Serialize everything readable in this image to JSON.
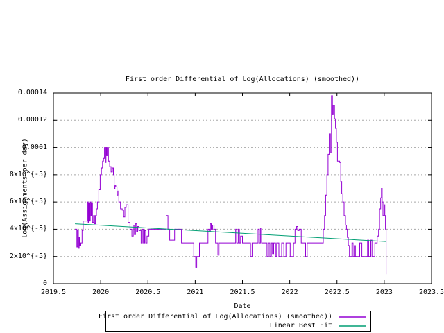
{
  "window": {
    "background": "#ffffff",
    "text_color": "#000000"
  },
  "chart_data": {
    "type": "line",
    "title": "First order Differential of Log(Allocations) (smoothed))",
    "xlabel": "Date",
    "ylabel": "log(Assignments per day)",
    "xlim": [
      2019.5,
      2023.5
    ],
    "ylim": [
      0,
      0.00014
    ],
    "grid": {
      "horizontal": true,
      "vertical": false,
      "style": "dotted",
      "color": "#a8a8a8"
    },
    "frame_color": "#000000",
    "legend_position": "below-plot-centered, boxed, labels right-aligned before line samples",
    "xticks": {
      "values": [
        2019.5,
        2020,
        2020.5,
        2021,
        2021.5,
        2022,
        2022.5,
        2023,
        2023.5
      ],
      "labels": [
        "2019.5",
        "2020",
        "2020.5",
        "2021",
        "2021.5",
        "2022",
        "2022.5",
        "2023",
        "2023.5"
      ]
    },
    "yticks": {
      "values_e5": [
        0,
        2,
        4,
        6,
        8,
        10,
        12,
        14
      ],
      "labels": [
        "0",
        "2x10^{-5}",
        "4x10^{-5}",
        "6x10^{-5}",
        "8x10^{-5}",
        "0.0001",
        "0.00012",
        "0.00014"
      ]
    },
    "series": [
      {
        "name": "First order Differential of Log(Allocations) (smoothed))",
        "color": "#9400d3",
        "style": "steps",
        "y_scale": 1e-05,
        "points": [
          [
            2019.728,
            4.0
          ],
          [
            2019.748,
            2.7
          ],
          [
            2019.756,
            3.9
          ],
          [
            2019.764,
            2.6
          ],
          [
            2019.772,
            3.4
          ],
          [
            2019.78,
            2.8
          ],
          [
            2019.79,
            3.0
          ],
          [
            2019.803,
            3.9
          ],
          [
            2019.815,
            4.6
          ],
          [
            2019.86,
            6.0
          ],
          [
            2019.868,
            4.5
          ],
          [
            2019.875,
            5.9
          ],
          [
            2019.883,
            4.6
          ],
          [
            2019.89,
            6.0
          ],
          [
            2019.898,
            5.0
          ],
          [
            2019.905,
            5.9
          ],
          [
            2019.913,
            4.5
          ],
          [
            2019.925,
            5.0
          ],
          [
            2019.935,
            4.4
          ],
          [
            2019.945,
            5.0
          ],
          [
            2019.955,
            5.5
          ],
          [
            2019.965,
            6.0
          ],
          [
            2019.98,
            6.9
          ],
          [
            2019.995,
            8.0
          ],
          [
            2020.008,
            8.5
          ],
          [
            2020.02,
            9.0
          ],
          [
            2020.03,
            9.2
          ],
          [
            2020.04,
            10.0
          ],
          [
            2020.048,
            8.9
          ],
          [
            2020.056,
            10.0
          ],
          [
            2020.064,
            9.4
          ],
          [
            2020.072,
            10.0
          ],
          [
            2020.082,
            9.0
          ],
          [
            2020.095,
            8.6
          ],
          [
            2020.11,
            8.2
          ],
          [
            2020.124,
            8.5
          ],
          [
            2020.135,
            8.0
          ],
          [
            2020.143,
            7.0
          ],
          [
            2020.151,
            7.2
          ],
          [
            2020.16,
            7.1
          ],
          [
            2020.172,
            6.5
          ],
          [
            2020.182,
            6.8
          ],
          [
            2020.192,
            6.0
          ],
          [
            2020.21,
            5.5
          ],
          [
            2020.228,
            5.4
          ],
          [
            2020.243,
            4.9
          ],
          [
            2020.256,
            5.6
          ],
          [
            2020.27,
            5.8
          ],
          [
            2020.29,
            4.5
          ],
          [
            2020.31,
            4.0
          ],
          [
            2020.33,
            3.5
          ],
          [
            2020.345,
            4.3
          ],
          [
            2020.357,
            3.6
          ],
          [
            2020.368,
            4.4
          ],
          [
            2020.38,
            3.8
          ],
          [
            2020.392,
            4.2
          ],
          [
            2020.405,
            3.9
          ],
          [
            2020.428,
            3.0
          ],
          [
            2020.44,
            4.0
          ],
          [
            2020.452,
            3.0
          ],
          [
            2020.465,
            3.9
          ],
          [
            2020.476,
            3.0
          ],
          [
            2020.49,
            3.5
          ],
          [
            2020.51,
            4.0
          ],
          [
            2020.693,
            5.0
          ],
          [
            2020.712,
            4.0
          ],
          [
            2020.73,
            3.2
          ],
          [
            2020.782,
            4.0
          ],
          [
            2020.855,
            3.0
          ],
          [
            2020.985,
            2.0
          ],
          [
            2021.005,
            1.2
          ],
          [
            2021.016,
            2.0
          ],
          [
            2021.045,
            3.0
          ],
          [
            2021.135,
            4.0
          ],
          [
            2021.15,
            3.8
          ],
          [
            2021.16,
            4.4
          ],
          [
            2021.17,
            4.0
          ],
          [
            2021.185,
            4.3
          ],
          [
            2021.2,
            4.0
          ],
          [
            2021.215,
            3.0
          ],
          [
            2021.24,
            2.1
          ],
          [
            2021.252,
            3.0
          ],
          [
            2021.428,
            4.0
          ],
          [
            2021.44,
            3.0
          ],
          [
            2021.455,
            4.0
          ],
          [
            2021.468,
            3.0
          ],
          [
            2021.48,
            3.5
          ],
          [
            2021.5,
            3.0
          ],
          [
            2021.585,
            2.0
          ],
          [
            2021.602,
            3.0
          ],
          [
            2021.665,
            4.0
          ],
          [
            2021.678,
            3.0
          ],
          [
            2021.69,
            4.1
          ],
          [
            2021.702,
            3.0
          ],
          [
            2021.76,
            2.0
          ],
          [
            2021.775,
            3.0
          ],
          [
            2021.79,
            2.0
          ],
          [
            2021.805,
            3.0
          ],
          [
            2021.818,
            2.2
          ],
          [
            2021.83,
            3.0
          ],
          [
            2021.85,
            2.0
          ],
          [
            2021.862,
            3.0
          ],
          [
            2021.885,
            2.0
          ],
          [
            2021.915,
            3.0
          ],
          [
            2021.938,
            2.0
          ],
          [
            2021.96,
            3.0
          ],
          [
            2022.005,
            2.0
          ],
          [
            2022.04,
            3.0
          ],
          [
            2022.056,
            4.0
          ],
          [
            2022.073,
            4.2
          ],
          [
            2022.085,
            3.9
          ],
          [
            2022.1,
            4.0
          ],
          [
            2022.122,
            3.0
          ],
          [
            2022.168,
            2.0
          ],
          [
            2022.185,
            3.0
          ],
          [
            2022.355,
            4.0
          ],
          [
            2022.368,
            5.0
          ],
          [
            2022.38,
            6.5
          ],
          [
            2022.393,
            8.0
          ],
          [
            2022.406,
            9.5
          ],
          [
            2022.418,
            11.0
          ],
          [
            2022.43,
            9.6
          ],
          [
            2022.442,
            13.8
          ],
          [
            2022.452,
            12.4
          ],
          [
            2022.46,
            13.1
          ],
          [
            2022.474,
            12.1
          ],
          [
            2022.484,
            11.4
          ],
          [
            2022.494,
            10.4
          ],
          [
            2022.505,
            9.0
          ],
          [
            2022.528,
            8.9
          ],
          [
            2022.54,
            7.5
          ],
          [
            2022.55,
            6.6
          ],
          [
            2022.562,
            6.0
          ],
          [
            2022.575,
            5.0
          ],
          [
            2022.59,
            4.3
          ],
          [
            2022.6,
            4.0
          ],
          [
            2022.61,
            3.4
          ],
          [
            2022.62,
            2.8
          ],
          [
            2022.632,
            2.0
          ],
          [
            2022.658,
            3.0
          ],
          [
            2022.67,
            2.0
          ],
          [
            2022.683,
            2.8
          ],
          [
            2022.695,
            2.0
          ],
          [
            2022.74,
            3.0
          ],
          [
            2022.763,
            2.0
          ],
          [
            2022.823,
            3.2
          ],
          [
            2022.835,
            2.0
          ],
          [
            2022.858,
            3.2
          ],
          [
            2022.87,
            2.0
          ],
          [
            2022.9,
            3.0
          ],
          [
            2022.925,
            3.5
          ],
          [
            2022.94,
            4.0
          ],
          [
            2022.95,
            5.5
          ],
          [
            2022.962,
            6.3
          ],
          [
            2022.97,
            7.0
          ],
          [
            2022.978,
            6.0
          ],
          [
            2022.986,
            5.0
          ],
          [
            2022.998,
            5.8
          ],
          [
            2023.006,
            5.0
          ],
          [
            2023.013,
            4.0
          ],
          [
            2023.02,
            0.7
          ]
        ]
      },
      {
        "name": "Linear Best Fit",
        "color": "#009e73",
        "style": "line",
        "y_scale": 1e-05,
        "points": [
          [
            2019.728,
            4.4
          ],
          [
            2023.02,
            3.1
          ]
        ]
      }
    ]
  }
}
